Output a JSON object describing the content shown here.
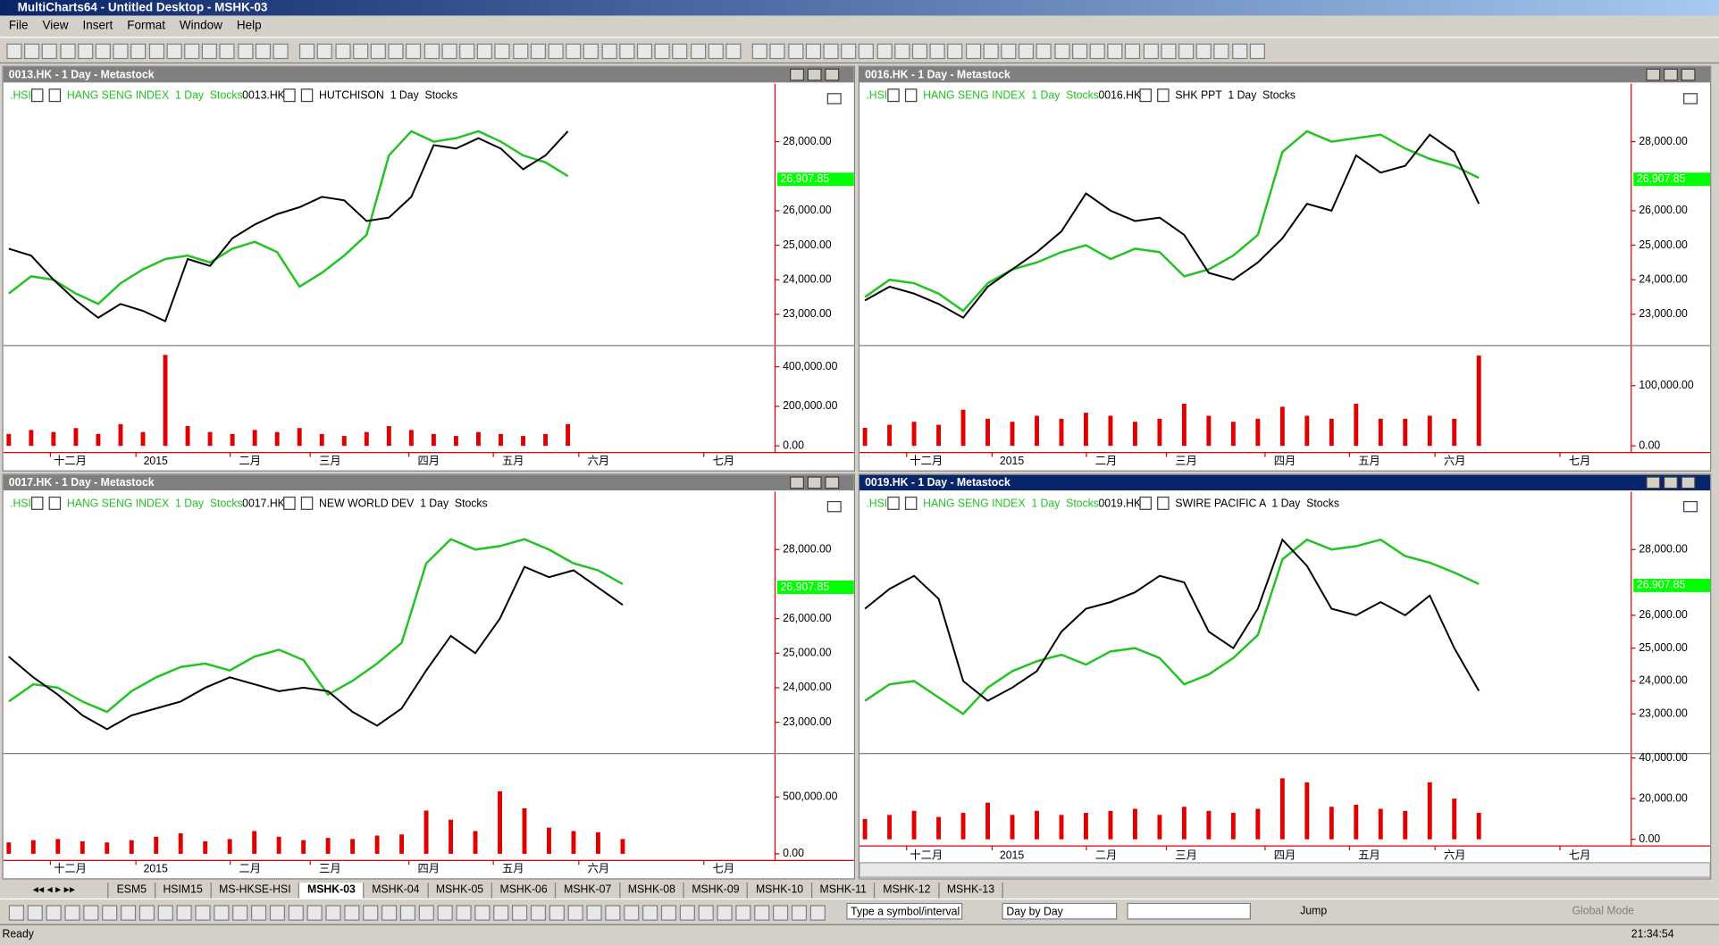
{
  "window": {
    "title": "MultiCharts64 - Untitled Desktop - MSHK-03"
  },
  "menu": [
    "File",
    "View",
    "Insert",
    "Format",
    "Window",
    "Help"
  ],
  "chart_data": [
    {
      "type": "line",
      "title": "0013.HK - 1 Day - Metastock",
      "active": false,
      "legend": [
        ".HSI",
        "HANG SENG INDEX  1 Day  Stocks",
        "0013.HK",
        "HUTCHISON  1 Day  Stocks"
      ],
      "colors": {
        "price": "#000000",
        "index": "#22c322",
        "volume": "#e00000",
        "axis": "#e00000"
      },
      "price": [
        24900,
        24700,
        24000,
        23400,
        22900,
        23300,
        23100,
        22800,
        24600,
        24400,
        25200,
        25600,
        25900,
        26100,
        26400,
        26300,
        25700,
        25800,
        26400,
        27900,
        27800,
        28100,
        27800,
        27200,
        27600,
        28300
      ],
      "index": [
        23600,
        24100,
        24000,
        23600,
        23300,
        23900,
        24300,
        24600,
        24700,
        24500,
        24900,
        25100,
        24800,
        23800,
        24200,
        24700,
        25300,
        27600,
        28300,
        28000,
        28100,
        28300,
        28000,
        27600,
        27400,
        27000
      ],
      "volume": [
        60000,
        80000,
        70000,
        90000,
        60000,
        110000,
        70000,
        460000,
        100000,
        70000,
        60000,
        80000,
        70000,
        90000,
        60000,
        50000,
        70000,
        100000,
        80000,
        60000,
        50000,
        70000,
        60000,
        50000,
        60000,
        110000
      ],
      "ylim": [
        22160,
        29680
      ],
      "yticks": [
        {
          "value": 28000,
          "label": "28,000.00"
        },
        {
          "value": 26000,
          "label": "26,000.00"
        },
        {
          "value": 25000,
          "label": "25,000.00"
        },
        {
          "value": 24000,
          "label": "24,000.00"
        },
        {
          "value": 23000,
          "label": "23,000.00"
        }
      ],
      "marker": {
        "value": 26907.85,
        "label": "26,907.85"
      },
      "vol_ylim": [
        0,
        496000
      ],
      "vol_yticks": [
        {
          "value": 400000,
          "label": "400,000.00"
        },
        {
          "value": 200000,
          "label": "200,000.00"
        },
        {
          "value": 0,
          "label": "0.00"
        }
      ],
      "x_labels": [
        "十二月",
        "2015",
        "二月",
        "三月",
        "四月",
        "五月",
        "六月",
        "七月"
      ]
    },
    {
      "type": "line",
      "title": "0016.HK - 1 Day - Metastock",
      "active": false,
      "legend": [
        ".HSI",
        "HANG SENG INDEX  1 Day  Stocks",
        "0016.HK",
        "SHK PPT  1 Day  Stocks"
      ],
      "colors": {
        "price": "#000000",
        "index": "#22c322",
        "volume": "#e00000",
        "axis": "#e00000"
      },
      "price": [
        23400,
        23800,
        23600,
        23300,
        22900,
        23800,
        24300,
        24800,
        25400,
        26500,
        26000,
        25700,
        25800,
        25300,
        24200,
        24000,
        24500,
        25200,
        26200,
        26000,
        27600,
        27100,
        27300,
        28200,
        27700,
        26200
      ],
      "index": [
        23500,
        24000,
        23900,
        23600,
        23100,
        23900,
        24300,
        24500,
        24800,
        25000,
        24600,
        24900,
        24800,
        24100,
        24300,
        24700,
        25300,
        27700,
        28300,
        28000,
        28100,
        28200,
        27800,
        27500,
        27300,
        26950
      ],
      "volume": [
        30000,
        35000,
        40000,
        35000,
        60000,
        45000,
        40000,
        50000,
        45000,
        55000,
        50000,
        40000,
        45000,
        70000,
        50000,
        40000,
        45000,
        65000,
        50000,
        45000,
        70000,
        45000,
        45000,
        50000,
        45000,
        150000
      ],
      "ylim": [
        22160,
        29680
      ],
      "yticks": [
        {
          "value": 28000,
          "label": "28,000.00"
        },
        {
          "value": 26000,
          "label": "26,000.00"
        },
        {
          "value": 25000,
          "label": "25,000.00"
        },
        {
          "value": 24000,
          "label": "24,000.00"
        },
        {
          "value": 23000,
          "label": "23,000.00"
        }
      ],
      "marker": {
        "value": 26907.85,
        "label": "26,907.85"
      },
      "vol_ylim": [
        0,
        163000
      ],
      "vol_yticks": [
        {
          "value": 100000,
          "label": "100,000.00"
        },
        {
          "value": 0,
          "label": "0.00"
        }
      ],
      "x_labels": [
        "十二月",
        "2015",
        "二月",
        "三月",
        "四月",
        "五月",
        "六月",
        "七月"
      ]
    },
    {
      "type": "line",
      "title": "0017.HK - 1 Day - Metastock",
      "active": false,
      "legend": [
        ".HSI",
        "HANG SENG INDEX  1 Day  Stocks",
        "0017.HK",
        "NEW WORLD DEV  1 Day  Stocks"
      ],
      "colors": {
        "price": "#000000",
        "index": "#22c322",
        "volume": "#e00000",
        "axis": "#e00000"
      },
      "price": [
        24900,
        24300,
        23800,
        23200,
        22800,
        23200,
        23400,
        23600,
        24000,
        24300,
        24100,
        23900,
        24000,
        23900,
        23300,
        22900,
        23400,
        24500,
        25500,
        25000,
        26000,
        27500,
        27200,
        27400,
        26900,
        26400
      ],
      "index": [
        23600,
        24100,
        24000,
        23600,
        23300,
        23900,
        24300,
        24600,
        24700,
        24500,
        24900,
        25100,
        24800,
        23800,
        24200,
        24700,
        25300,
        27600,
        28300,
        28000,
        28100,
        28300,
        28000,
        27600,
        27400,
        27000
      ],
      "volume": [
        100000,
        120000,
        130000,
        110000,
        100000,
        120000,
        150000,
        180000,
        110000,
        130000,
        200000,
        150000,
        120000,
        140000,
        130000,
        160000,
        170000,
        380000,
        300000,
        200000,
        550000,
        400000,
        230000,
        200000,
        190000,
        130000
      ],
      "ylim": [
        22160,
        29680
      ],
      "yticks": [
        {
          "value": 28000,
          "label": "28,000.00"
        },
        {
          "value": 26000,
          "label": "26,000.00"
        },
        {
          "value": 25000,
          "label": "25,000.00"
        },
        {
          "value": 24000,
          "label": "24,000.00"
        },
        {
          "value": 23000,
          "label": "23,000.00"
        }
      ],
      "marker": {
        "value": 26907.85,
        "label": "26,907.85"
      },
      "vol_ylim": [
        0,
        863000
      ],
      "vol_yticks": [
        {
          "value": 500000,
          "label": "500,000.00"
        },
        {
          "value": 0,
          "label": "0.00"
        }
      ],
      "x_labels": [
        "十二月",
        "2015",
        "二月",
        "三月",
        "四月",
        "五月",
        "六月",
        "七月"
      ]
    },
    {
      "type": "line",
      "title": "0019.HK - 1 Day - Metastock",
      "active": true,
      "legend": [
        ".HSI",
        "HANG SENG INDEX  1 Day  Stocks",
        "0019.HK",
        "SWIRE PACIFIC A  1 Day  Stocks"
      ],
      "colors": {
        "price": "#000000",
        "index": "#22c322",
        "volume": "#e00000",
        "axis": "#e00000"
      },
      "price": [
        26200,
        26800,
        27200,
        26500,
        24000,
        23400,
        23800,
        24300,
        25500,
        26200,
        26400,
        26700,
        27200,
        27000,
        25500,
        25000,
        26200,
        28300,
        27500,
        26200,
        26000,
        26400,
        26000,
        26600,
        25000,
        23700
      ],
      "index": [
        23400,
        23900,
        24000,
        23500,
        23000,
        23800,
        24300,
        24600,
        24800,
        24500,
        24900,
        25000,
        24700,
        23900,
        24200,
        24700,
        25400,
        27700,
        28300,
        28000,
        28100,
        28300,
        27800,
        27600,
        27300,
        26950
      ],
      "volume": [
        10000,
        12000,
        14000,
        11000,
        13000,
        18000,
        12000,
        14000,
        12000,
        13000,
        14000,
        15000,
        12000,
        16000,
        14000,
        13000,
        15000,
        30000,
        28000,
        16000,
        17000,
        15000,
        14000,
        28000,
        20000,
        13000
      ],
      "ylim": [
        21864,
        29763
      ],
      "yticks": [
        {
          "value": 28000,
          "label": "28,000.00"
        },
        {
          "value": 26000,
          "label": "26,000.00"
        },
        {
          "value": 25000,
          "label": "25,000.00"
        },
        {
          "value": 24000,
          "label": "24,000.00"
        },
        {
          "value": 23000,
          "label": "23,000.00"
        }
      ],
      "marker": {
        "value": 26907.85,
        "label": "26,907.85"
      },
      "vol_ylim": [
        0,
        41100
      ],
      "vol_yticks": [
        {
          "value": 40000,
          "label": "40,000.00"
        },
        {
          "value": 20000,
          "label": "20,000.00"
        },
        {
          "value": 0,
          "label": "0.00"
        }
      ],
      "x_labels": [
        "十二月",
        "2015",
        "二月",
        "三月",
        "四月",
        "五月",
        "六月",
        "七月"
      ]
    }
  ],
  "tabs": [
    "ESM5",
    "HSIM15",
    "MS-HKSE-HSI",
    "MSHK-03",
    "MSHK-04",
    "MSHK-05",
    "MSHK-06",
    "MSHK-07",
    "MSHK-08",
    "MSHK-09",
    "MSHK-10",
    "MSHK-11",
    "MSHK-12",
    "MSHK-13"
  ],
  "toolbar": {
    "symbol_box": "Type a symbol/interval",
    "mode": "Day by Day",
    "jump": "Jump",
    "global": "Global Mode"
  },
  "status": {
    "text": "Ready",
    "time": "21:34:54"
  }
}
